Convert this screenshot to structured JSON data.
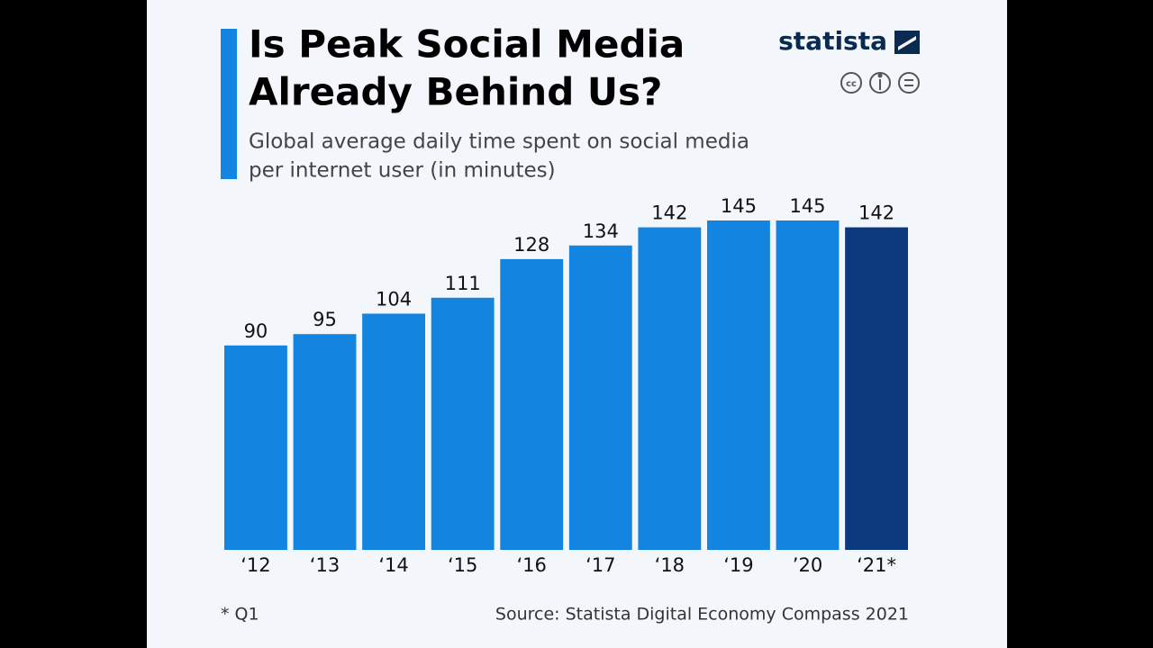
{
  "chart_data": {
    "type": "bar",
    "title": [
      "Is Peak Social Media",
      "Already Behind Us?"
    ],
    "subtitle": [
      "Global average daily time spent on social media",
      "per internet user (in minutes)"
    ],
    "brand": "statista",
    "license_mark": "cc",
    "categories": [
      "‘12",
      "‘13",
      "‘14",
      "‘15",
      "‘16",
      "‘17",
      "‘18",
      "‘19",
      "’20",
      "‘21*"
    ],
    "values": [
      90,
      95,
      104,
      111,
      128,
      134,
      142,
      145,
      145,
      142
    ],
    "colors": [
      "#1385e0",
      "#1385e0",
      "#1385e0",
      "#1385e0",
      "#1385e0",
      "#1385e0",
      "#1385e0",
      "#1385e0",
      "#1385e0",
      "#0b3a7e"
    ],
    "ylim": [
      0,
      145
    ],
    "footnote": "* Q1",
    "source": "Source: Statista Digital Economy Compass 2021"
  }
}
